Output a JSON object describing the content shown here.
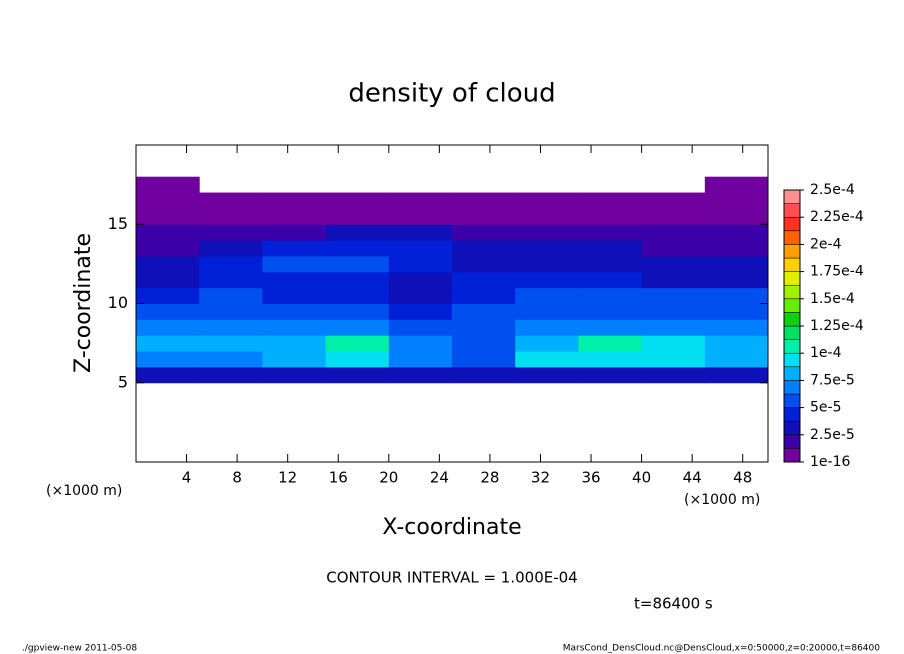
{
  "chart_data": {
    "type": "heatmap",
    "title": "density of cloud",
    "x_label": "X-coordinate",
    "y_label": "Z-coordinate",
    "x_unit_label": "(×1000 m)",
    "y_unit_label": "(×1000 m)",
    "annotation": "CONTOUR INTERVAL = 1.000E-04",
    "time_label": "t=86400 s",
    "footer_left": "./gpview-new   2011-05-08",
    "footer_right": "MarsCond_DensCloud.nc@DensCloud,x=0:50000,z=0:20000,t=86400",
    "xlim": [
      0,
      50
    ],
    "ylim": [
      0,
      20
    ],
    "xticks": [
      4,
      8,
      12,
      16,
      20,
      24,
      28,
      32,
      36,
      40,
      44,
      48
    ],
    "yticks": [
      5,
      10,
      15
    ],
    "x": [
      2.5,
      7.5,
      12.5,
      17.5,
      22.5,
      27.5,
      32.5,
      37.5,
      42.5,
      47.5
    ],
    "y": [
      0.5,
      1.5,
      2.5,
      3.5,
      4.5,
      5.5,
      6.5,
      7.5,
      8.5,
      9.5,
      10.5,
      11.5,
      12.5,
      13.5,
      14.5,
      15.5,
      16.5,
      17.5,
      18.5,
      19.5
    ],
    "z_values": [
      [
        null,
        null,
        null,
        null,
        null,
        null,
        null,
        null,
        null,
        null
      ],
      [
        null,
        null,
        null,
        null,
        null,
        null,
        null,
        null,
        null,
        null
      ],
      [
        null,
        null,
        null,
        null,
        null,
        null,
        null,
        null,
        null,
        null
      ],
      [
        null,
        null,
        null,
        null,
        null,
        null,
        null,
        null,
        null,
        null
      ],
      [
        null,
        null,
        null,
        null,
        null,
        null,
        null,
        null,
        null,
        null
      ],
      [
        3e-05,
        3e-05,
        3e-05,
        3e-05,
        3e-05,
        3e-05,
        3e-05,
        3e-05,
        3e-05,
        3e-05
      ],
      [
        7e-05,
        7e-05,
        8e-05,
        9e-05,
        7e-05,
        6e-05,
        9e-05,
        9e-05,
        9e-05,
        8e-05
      ],
      [
        8e-05,
        8e-05,
        8e-05,
        0.000105,
        7e-05,
        6e-05,
        8e-05,
        0.000105,
        9e-05,
        8e-05
      ],
      [
        7e-05,
        7e-05,
        7e-05,
        7e-05,
        6e-05,
        5e-05,
        7e-05,
        7e-05,
        7e-05,
        7e-05
      ],
      [
        6e-05,
        6e-05,
        6e-05,
        5e-05,
        4e-05,
        5e-05,
        6e-05,
        6e-05,
        6e-05,
        6e-05
      ],
      [
        4e-05,
        5e-05,
        4e-05,
        4e-05,
        3e-05,
        4e-05,
        5e-05,
        5e-05,
        5e-05,
        5e-05
      ],
      [
        3e-05,
        4e-05,
        4e-05,
        4e-05,
        3e-05,
        4e-05,
        4e-05,
        4e-05,
        3e-05,
        3e-05
      ],
      [
        2.5e-05,
        4e-05,
        5e-05,
        5e-05,
        4e-05,
        3e-05,
        3e-05,
        3e-05,
        2.5e-05,
        2.5e-05
      ],
      [
        2e-05,
        3e-05,
        4e-05,
        4e-05,
        4e-05,
        3e-05,
        2.5e-05,
        2.5e-05,
        2e-05,
        2e-05
      ],
      [
        1.5e-05,
        2e-05,
        2e-05,
        2.5e-05,
        2.5e-05,
        2e-05,
        2e-05,
        2e-05,
        1.5e-05,
        1.5e-05
      ],
      [
        1e-05,
        1e-05,
        1e-05,
        1e-05,
        1e-05,
        1e-05,
        1e-05,
        1e-05,
        1e-05,
        1e-05
      ],
      [
        5e-06,
        5e-06,
        5e-06,
        5e-06,
        5e-06,
        5e-06,
        5e-06,
        5e-06,
        5e-06,
        5e-06
      ],
      [
        1e-06,
        null,
        null,
        null,
        null,
        null,
        null,
        null,
        null,
        1e-06
      ],
      [
        null,
        null,
        null,
        null,
        null,
        null,
        null,
        null,
        null,
        null
      ],
      [
        null,
        null,
        null,
        null,
        null,
        null,
        null,
        null,
        null,
        null
      ]
    ],
    "clim": [
      1e-16,
      0.00025
    ],
    "levels": [
      1e-16,
      1.25e-05,
      2.5e-05,
      3.75e-05,
      5e-05,
      6.25e-05,
      7.5e-05,
      8.75e-05,
      0.0001,
      0.0001125,
      0.000125,
      0.0001375,
      0.00015,
      0.0001625,
      0.000175,
      0.0001875,
      0.0002,
      0.0002125,
      0.000225,
      0.0002375,
      0.00025
    ],
    "colors": [
      "#7000a0",
      "#3c00a8",
      "#1010b8",
      "#0020d8",
      "#0050f0",
      "#0080ff",
      "#00b0ff",
      "#00e0f0",
      "#00f0a8",
      "#00e060",
      "#10d010",
      "#60f000",
      "#a0f000",
      "#e0f000",
      "#ffd000",
      "#ffa000",
      "#ff6000",
      "#ff3020",
      "#ff5050",
      "#ff9090"
    ],
    "colorbar_ticks": [
      {
        "value": 1e-16,
        "label": "1e-16"
      },
      {
        "value": 2.5e-05,
        "label": "2.5e-5"
      },
      {
        "value": 5e-05,
        "label": "5e-5"
      },
      {
        "value": 7.5e-05,
        "label": "7.5e-5"
      },
      {
        "value": 0.0001,
        "label": "1e-4"
      },
      {
        "value": 0.000125,
        "label": "1.25e-4"
      },
      {
        "value": 0.00015,
        "label": "1.5e-4"
      },
      {
        "value": 0.000175,
        "label": "1.75e-4"
      },
      {
        "value": 0.0002,
        "label": "2e-4"
      },
      {
        "value": 0.000225,
        "label": "2.25e-4"
      },
      {
        "value": 0.00025,
        "label": "2.5e-4"
      }
    ]
  }
}
